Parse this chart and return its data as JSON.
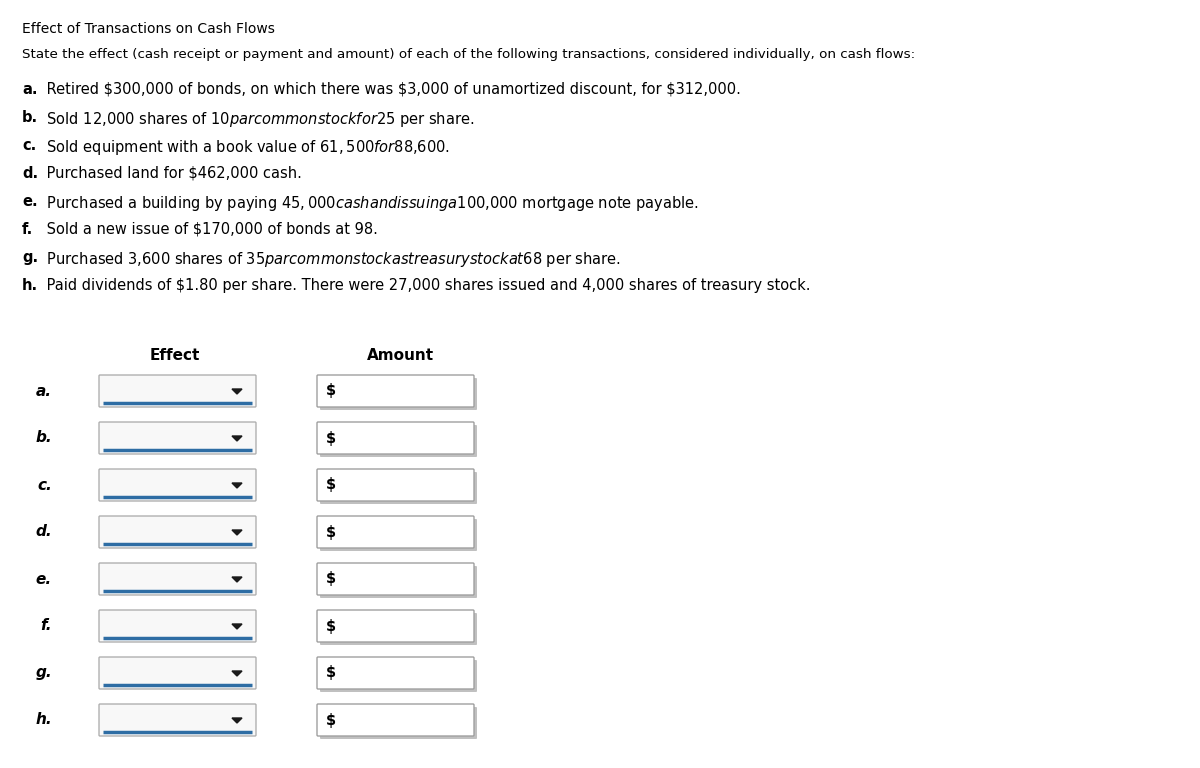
{
  "title": "Effect of Transactions on Cash Flows",
  "subtitle": "State the effect (cash receipt or payment and amount) of each of the following transactions, considered individually, on cash flows:",
  "transactions": [
    {
      "label": "a.",
      "text": " Retired $300,000 of bonds, on which there was $3,000 of unamortized discount, for $312,000."
    },
    {
      "label": "b.",
      "text": " Sold 12,000 shares of $10 par common stock for $25 per share."
    },
    {
      "label": "c.",
      "text": " Sold equipment with a book value of $61,500 for $88,600."
    },
    {
      "label": "d.",
      "text": " Purchased land for $462,000 cash."
    },
    {
      "label": "e.",
      "text": " Purchased a building by paying $45,000 cash and issuing a $100,000 mortgage note payable."
    },
    {
      "label": "f.",
      "text": " Sold a new issue of $170,000 of bonds at 98."
    },
    {
      "label": "g.",
      "text": " Purchased 3,600 shares of $35 par common stock as treasury stock at $68 per share."
    },
    {
      "label": "h.",
      "text": " Paid dividends of $1.80 per share. There were 27,000 shares issued and 4,000 shares of treasury stock."
    }
  ],
  "row_labels": [
    "a.",
    "b.",
    "c.",
    "d.",
    "e.",
    "f.",
    "g.",
    "h."
  ],
  "col_headers": [
    "Effect",
    "Amount"
  ],
  "bg_color": "#ffffff",
  "text_color": "#000000",
  "title_fontsize": 10,
  "subtitle_fontsize": 10,
  "body_fontsize": 10.5,
  "label_fontsize": 11,
  "table_header_fontsize": 11,
  "dropdown_fill": "#f8f8f8",
  "dropdown_border": "#b0b0b0",
  "dropdown_line_color": "#2e6da4",
  "amount_box_fill": "#ffffff",
  "amount_box_border_light": "#d0d0d0",
  "amount_box_border_dark": "#a0a0a0",
  "dollar_sign_color": "#000000",
  "arrow_color": "#1a1a1a"
}
